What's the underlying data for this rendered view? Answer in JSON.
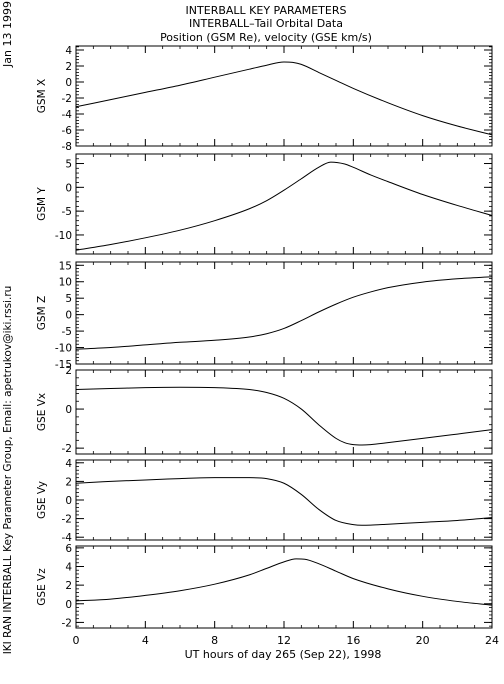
{
  "header": {
    "title1": "INTERBALL KEY PARAMETERS",
    "title2": "INTERBALL–Tail Orbital Data",
    "title3": "Position (GSM Re), velocity (GSE km/s)",
    "date": "Jan 13 1999",
    "credit": "IKI RAN INTERBALL Key Parameter Group, Email: apetrukov@iki.rssi.ru"
  },
  "colors": {
    "line": "#000000",
    "background": "#ffffff"
  },
  "chart_data": {
    "type": "line",
    "xlabel": "UT hours of day 265 (Sep 22), 1998",
    "xlim": [
      0,
      24
    ],
    "xticks": [
      0,
      4,
      8,
      12,
      16,
      20,
      24
    ],
    "xticklabels": [
      "0",
      "4",
      "8",
      "12",
      "16",
      "20",
      "24"
    ],
    "panels": [
      {
        "ylabel": "GSM X",
        "ylim": [
          -8,
          4.5
        ],
        "yticks": [
          -8,
          -6,
          -4,
          -2,
          0,
          2,
          4
        ],
        "x": [
          0,
          2,
          4,
          6,
          8,
          10,
          11,
          12,
          12.5,
          13,
          14,
          15,
          16,
          18,
          20,
          22,
          24
        ],
        "y": [
          -3.1,
          -2.2,
          -1.3,
          -0.4,
          0.6,
          1.6,
          2.1,
          2.5,
          2.45,
          2.2,
          1.2,
          0.2,
          -0.8,
          -2.6,
          -4.2,
          -5.5,
          -6.6
        ]
      },
      {
        "ylabel": "GSM Y",
        "ylim": [
          -14,
          7
        ],
        "yticks": [
          -10,
          -5,
          0,
          5
        ],
        "x": [
          0,
          2,
          4,
          6,
          8,
          10,
          11,
          12,
          13,
          14,
          14.7,
          15.5,
          16,
          17,
          18,
          20,
          22,
          24
        ],
        "y": [
          -13.2,
          -12,
          -10.6,
          -9,
          -7,
          -4.5,
          -2.8,
          -0.6,
          1.8,
          4.2,
          5.3,
          4.9,
          4.2,
          2.6,
          1.2,
          -1.5,
          -3.8,
          -5.9
        ]
      },
      {
        "ylabel": "GSM Z",
        "ylim": [
          -15,
          16
        ],
        "yticks": [
          -15,
          -10,
          -5,
          0,
          5,
          10,
          15
        ],
        "x": [
          0,
          2,
          4,
          6,
          8,
          10,
          11,
          12,
          13,
          14,
          15,
          16,
          17,
          18,
          20,
          22,
          24
        ],
        "y": [
          -10.5,
          -10,
          -9.2,
          -8.4,
          -7.8,
          -6.8,
          -5.8,
          -4.2,
          -1.8,
          0.8,
          3.2,
          5.3,
          6.9,
          8.2,
          9.9,
          10.9,
          11.5
        ]
      },
      {
        "ylabel": "GSE Vx",
        "ylim": [
          -2.3,
          2
        ],
        "yticks": [
          -2,
          0,
          2
        ],
        "x": [
          0,
          2,
          4,
          6,
          8,
          10,
          11,
          12,
          13,
          14,
          15,
          15.5,
          16,
          16.5,
          17,
          18,
          20,
          22,
          24
        ],
        "y": [
          1.0,
          1.05,
          1.1,
          1.12,
          1.1,
          1.0,
          0.85,
          0.55,
          0.0,
          -0.8,
          -1.5,
          -1.72,
          -1.82,
          -1.84,
          -1.82,
          -1.72,
          -1.5,
          -1.28,
          -1.05
        ]
      },
      {
        "ylabel": "GSE Vy",
        "ylim": [
          -4.3,
          4.3
        ],
        "yticks": [
          -4,
          -2,
          0,
          2,
          4
        ],
        "x": [
          0,
          2,
          4,
          6,
          8,
          10,
          11,
          12,
          13,
          14,
          15,
          16,
          16.5,
          17,
          18,
          20,
          22,
          24
        ],
        "y": [
          1.8,
          2.0,
          2.15,
          2.3,
          2.4,
          2.4,
          2.3,
          1.8,
          0.6,
          -1.0,
          -2.2,
          -2.65,
          -2.72,
          -2.7,
          -2.6,
          -2.4,
          -2.2,
          -1.9
        ]
      },
      {
        "ylabel": "GSE Vz",
        "ylim": [
          -2.6,
          6.2
        ],
        "yticks": [
          -2,
          0,
          2,
          4,
          6
        ],
        "x": [
          0,
          2,
          4,
          6,
          8,
          10,
          11,
          12,
          12.7,
          13.2,
          14,
          15,
          16,
          18,
          20,
          22,
          24
        ],
        "y": [
          0.3,
          0.5,
          0.9,
          1.4,
          2.1,
          3.1,
          3.8,
          4.5,
          4.82,
          4.78,
          4.3,
          3.5,
          2.7,
          1.6,
          0.8,
          0.25,
          -0.15
        ]
      }
    ]
  }
}
